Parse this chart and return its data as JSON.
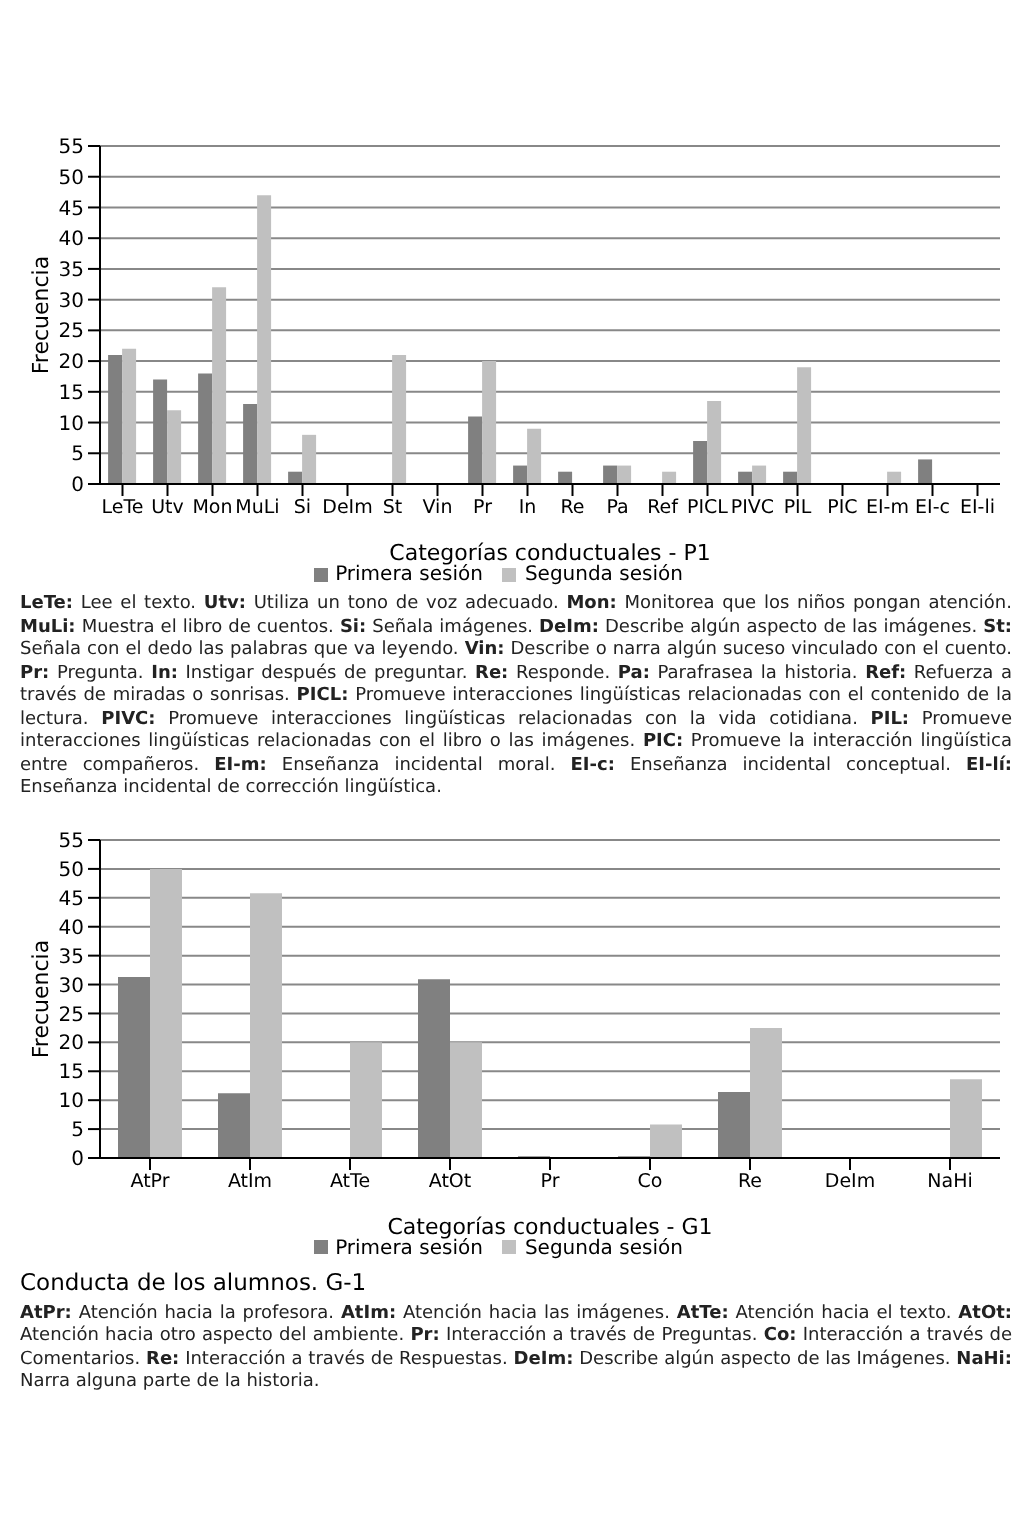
{
  "chart_data": [
    {
      "type": "bar",
      "xlabel": "Categorías conductuales  -  P1",
      "ylabel": "Frecuencia",
      "categories": [
        "LeTe",
        "Utv",
        "Mon",
        "MuLi",
        "Si",
        "DeIm",
        "St",
        "Vin",
        "Pr",
        "In",
        "Re",
        "Pa",
        "Ref",
        "PICL",
        "PIVC",
        "PIL",
        "PIC",
        "EI-m",
        "EI-c",
        "EI-li"
      ],
      "series": [
        {
          "name": "Primera sesión",
          "color": "#808080",
          "values": [
            21,
            17,
            18,
            13,
            2,
            0,
            0,
            0,
            11,
            3,
            2,
            3,
            0,
            7,
            2,
            2,
            0,
            0,
            4,
            0
          ]
        },
        {
          "name": "Segunda sesión",
          "color": "#c0c0c0",
          "values": [
            22,
            12,
            32,
            47,
            8,
            0,
            21,
            0,
            20,
            9,
            0,
            3,
            2,
            13.5,
            3,
            19,
            0,
            2,
            0,
            0
          ]
        }
      ],
      "ylim": [
        0,
        55
      ],
      "yticks": [
        0,
        5,
        10,
        15,
        20,
        25,
        30,
        35,
        40,
        45,
        50,
        55
      ],
      "grid": "y",
      "legend": "bottom",
      "annotations": [
        "LeTe: Lee el texto. Utv: Utiliza un tono de voz adecuado. Mon: Monitorea que los niños pongan atención. MuLi: Muestra el libro de cuentos. Si: Señala imágenes. DeIm: Describe algún aspecto de las imágenes. St: Señala con el dedo las palabras que va leyendo. Vin: Describe o narra algún suceso vinculado con el cuento. Pr: Pregunta. In: Instigar después de preguntar. Re: Responde. Pa: Parafrasea la historia. Ref: Refuerza a través de miradas o sonrisas. PICL: Promueve interacciones lingüísticas relacionadas con el contenido de la lectura. PIVC: Promueve interacciones lingüísticas relacionadas con la vida cotidiana. PIL: Promueve interacciones lingüísticas relacionadas con el libro o las imágenes. PIC: Promueve la interacción lingüística entre compañeros. EI-m: Enseñanza incidental moral. EI-c: Enseñanza incidental conceptual. EI-lí: Enseñanza incidental de corrección lingüística."
      ]
    },
    {
      "type": "bar",
      "title": "Conducta de los alumnos. G-1",
      "xlabel": "Categorías conductuales  -  G1",
      "ylabel": "Frecuencia",
      "categories": [
        "AtPr",
        "AtIm",
        "AtTe",
        "AtOt",
        "Pr",
        "Co",
        "Re",
        "DeIm",
        "NaHi"
      ],
      "series": [
        {
          "name": "Primera sesión",
          "color": "#808080",
          "values": [
            31.3,
            11.2,
            0,
            30.9,
            0.3,
            0.3,
            11.4,
            0,
            0
          ]
        },
        {
          "name": "Segunda sesión",
          "color": "#c0c0c0",
          "values": [
            50,
            45.8,
            20,
            20,
            0,
            5.8,
            22.5,
            0,
            13.6
          ]
        }
      ],
      "ylim": [
        0,
        55
      ],
      "yticks": [
        0,
        5,
        10,
        15,
        20,
        25,
        30,
        35,
        40,
        45,
        50,
        55
      ],
      "grid": "y",
      "legend": "bottom",
      "annotations": [
        "AtPr: Atención hacia la profesora. AtIm: Atención hacia las imágenes. AtTe: Atención hacia el texto. AtOt: Atención hacia otro aspecto del ambiente. Pr: Interacción a través de Preguntas. Co: Interacción a través de Comentarios. Re: Interacción a través de Respuestas. DeIm: Describe algún aspecto de las Imágenes. NaHi: Narra alguna parte de la historia."
      ]
    }
  ]
}
